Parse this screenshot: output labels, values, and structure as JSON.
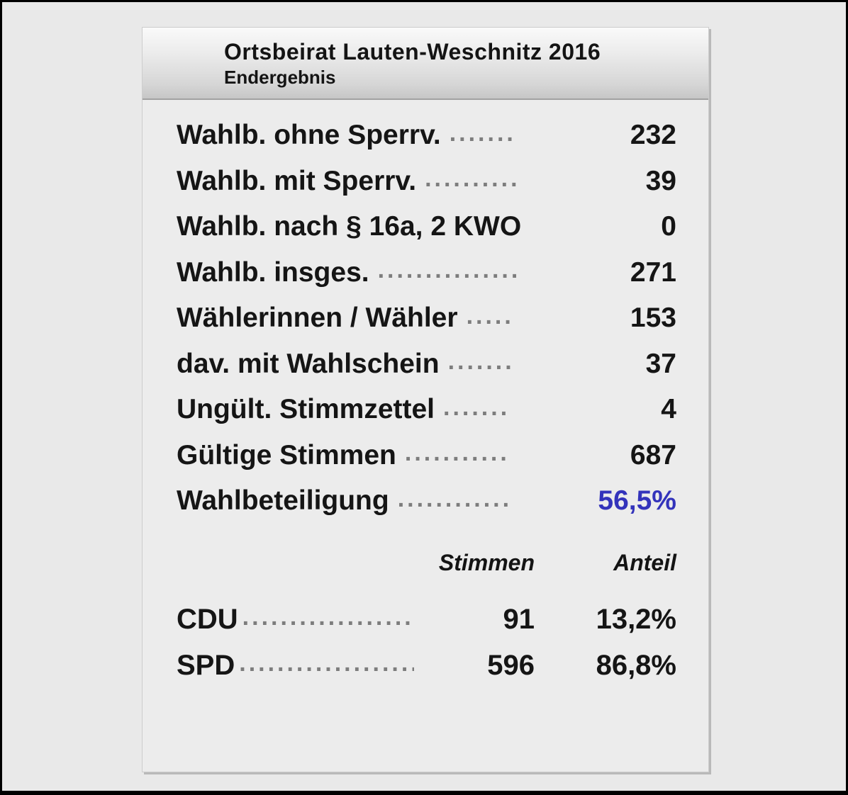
{
  "header": {
    "title": "Ortsbeirat Lauten-Weschnitz 2016",
    "subtitle": "Endergebnis"
  },
  "colors": {
    "accent_blue": "#3333bb",
    "text": "#151515",
    "leader_gray": "#7d7d7d",
    "panel_background": "#ececec",
    "outer_background": "#e9e9e9"
  },
  "statistics": [
    {
      "label": "Wahlb. ohne Sperrv.",
      "leader": ".......",
      "value": "232"
    },
    {
      "label": "Wahlb. mit Sperrv.",
      "leader": "..........",
      "value": "39"
    },
    {
      "label": "Wahlb. nach § 16a, 2 KWO",
      "leader": "",
      "value": "0"
    },
    {
      "label": "Wahlb. insges.",
      "leader": "...............",
      "value": "271"
    },
    {
      "label": "Wählerinnen / Wähler",
      "leader": ".....",
      "value": "153"
    },
    {
      "label": "dav. mit Wahlschein",
      "leader": ".......",
      "value": "37"
    },
    {
      "label": "Ungült. Stimmzettel",
      "leader": ".......",
      "value": "4"
    },
    {
      "label": "Gültige Stimmen",
      "leader": "...........",
      "value": "687"
    },
    {
      "label": "Wahlbeteiligung",
      "leader": "............",
      "value": "56,5%"
    }
  ],
  "results_table": {
    "columns": {
      "votes": "Stimmen",
      "share": "Anteil"
    },
    "rows": [
      {
        "party": "CDU",
        "leader": ".....................",
        "votes": "91",
        "share": "13,2%"
      },
      {
        "party": "SPD",
        "leader": "...................",
        "votes": "596",
        "share": "86,8%"
      }
    ]
  }
}
